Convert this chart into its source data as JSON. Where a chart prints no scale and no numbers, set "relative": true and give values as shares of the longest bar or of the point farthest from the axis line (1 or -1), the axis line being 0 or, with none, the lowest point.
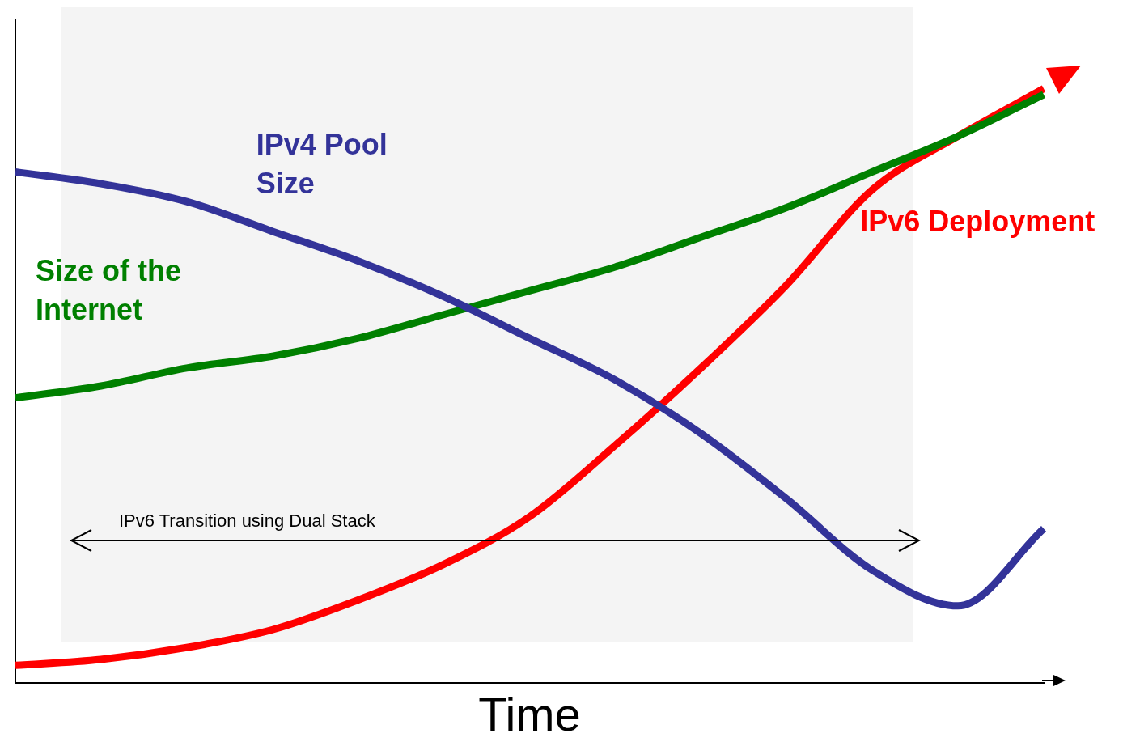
{
  "chart_data": {
    "type": "line",
    "relative": true,
    "xlabel": "Time",
    "legend": false,
    "grid": false,
    "categories": [
      null,
      null,
      null,
      null,
      null,
      null,
      null,
      null,
      null,
      null,
      null,
      null,
      null
    ],
    "series": [
      {
        "name": "IPv4 Pool Size",
        "color": "#333399",
        "values": [
          0.86,
          0.84,
          0.81,
          0.76,
          0.71,
          0.65,
          0.58,
          0.51,
          0.42,
          0.31,
          0.19,
          0.13,
          0.26
        ]
      },
      {
        "name": "Size of the Internet",
        "color": "#008000",
        "values": [
          0.48,
          0.5,
          0.53,
          0.55,
          0.58,
          0.62,
          0.66,
          0.7,
          0.75,
          0.8,
          0.86,
          0.92,
          0.99
        ]
      },
      {
        "name": "IPv6 Deployment",
        "color": "#ff0000",
        "values": [
          0.03,
          0.04,
          0.06,
          0.09,
          0.14,
          0.2,
          0.28,
          0.4,
          0.53,
          0.67,
          0.83,
          0.92,
          1.0
        ]
      }
    ],
    "ref_lines": [
      {
        "axis": "y",
        "value": 0.24,
        "label": "IPv6 Transition using Dual Stack",
        "color": "#000000"
      }
    ]
  }
}
